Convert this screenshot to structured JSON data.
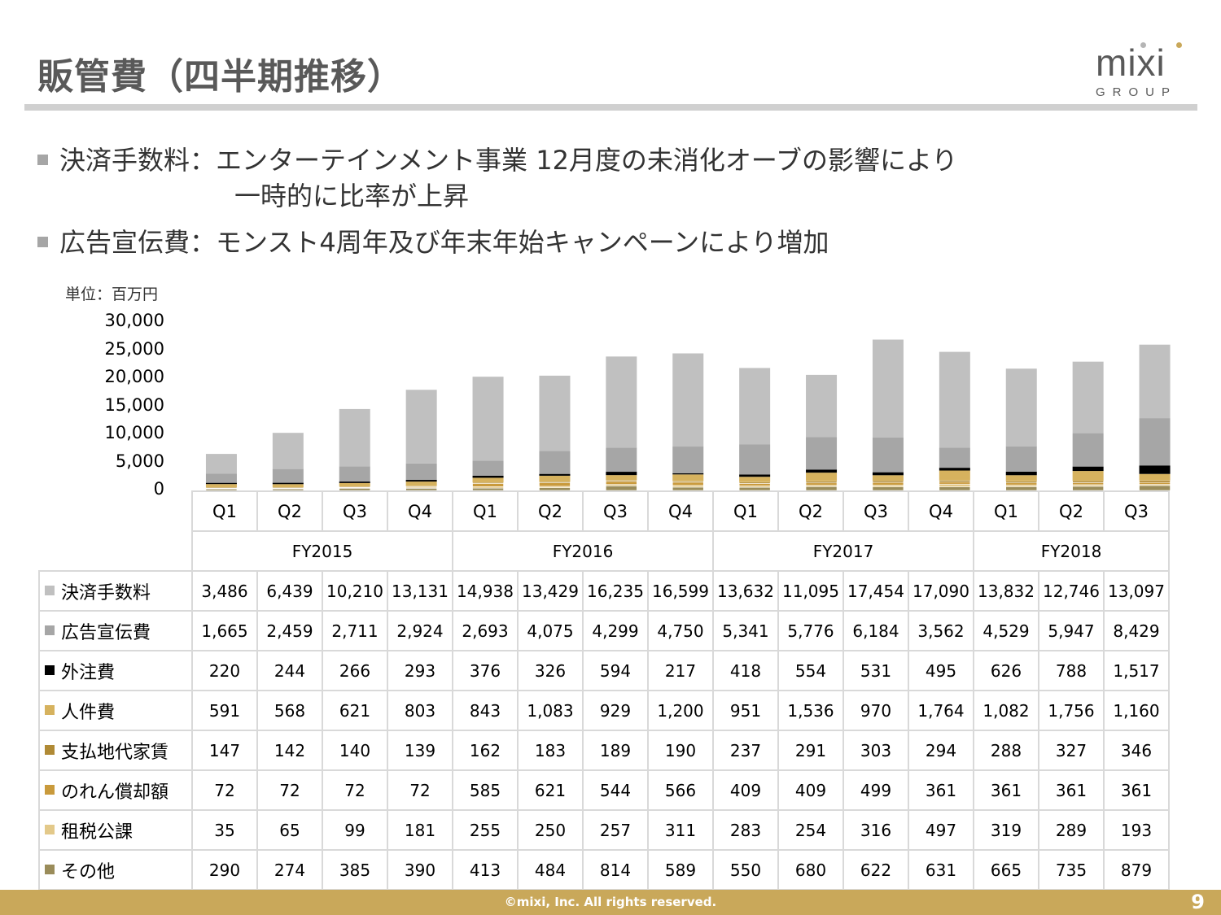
{
  "title": "販管費（四半期推移）",
  "logo": {
    "word": "mixi",
    "group": "GROUP"
  },
  "bullets": [
    {
      "line1": "決済手数料：エンターテインメント事業 12月度の未消化オーブの影響により",
      "line2": "一時的に比率が上昇"
    },
    {
      "line1": "広告宣伝費：モンスト4周年及び年末年始キャンペーンにより増加",
      "line2": ""
    }
  ],
  "unit_label": "単位：百万円",
  "chart_data": {
    "type": "bar",
    "stacked": true,
    "ylim": [
      0,
      30000
    ],
    "yticks": [
      "30,000",
      "25,000",
      "20,000",
      "15,000",
      "10,000",
      "5,000",
      "0"
    ],
    "categories": [
      "Q1",
      "Q2",
      "Q3",
      "Q4",
      "Q1",
      "Q2",
      "Q3",
      "Q4",
      "Q1",
      "Q2",
      "Q3",
      "Q4",
      "Q1",
      "Q2",
      "Q3"
    ],
    "groups": [
      {
        "label": "FY2015",
        "span": 4
      },
      {
        "label": "FY2016",
        "span": 4
      },
      {
        "label": "FY2017",
        "span": 4
      },
      {
        "label": "FY2018",
        "span": 3
      }
    ],
    "series": [
      {
        "name": "その他",
        "color": "#9a8c5a",
        "values": [
          290,
          274,
          385,
          390,
          413,
          484,
          814,
          589,
          550,
          680,
          622,
          631,
          665,
          735,
          879
        ],
        "labels": [
          "290",
          "274",
          "385",
          "390",
          "413",
          "484",
          "814",
          "589",
          "550",
          "680",
          "622",
          "631",
          "665",
          "735",
          "879"
        ]
      },
      {
        "name": "租税公課",
        "color": "#e3c98a",
        "values": [
          35,
          65,
          99,
          181,
          255,
          250,
          257,
          311,
          283,
          254,
          316,
          497,
          319,
          289,
          193
        ],
        "labels": [
          "35",
          "65",
          "99",
          "181",
          "255",
          "250",
          "257",
          "311",
          "283",
          "254",
          "316",
          "497",
          "319",
          "289",
          "193"
        ]
      },
      {
        "name": "のれん償却額",
        "color": "#c99a3c",
        "values": [
          72,
          72,
          72,
          72,
          585,
          621,
          544,
          566,
          409,
          409,
          499,
          361,
          361,
          361,
          361
        ],
        "labels": [
          "72",
          "72",
          "72",
          "72",
          "585",
          "621",
          "544",
          "566",
          "409",
          "409",
          "499",
          "361",
          "361",
          "361",
          "361"
        ]
      },
      {
        "name": "支払地代家賃",
        "color": "#b08a35",
        "values": [
          147,
          142,
          140,
          139,
          162,
          183,
          189,
          190,
          237,
          291,
          303,
          294,
          288,
          327,
          346
        ],
        "labels": [
          "147",
          "142",
          "140",
          "139",
          "162",
          "183",
          "189",
          "190",
          "237",
          "291",
          "303",
          "294",
          "288",
          "327",
          "346"
        ]
      },
      {
        "name": "人件費",
        "color": "#d6b25e",
        "values": [
          591,
          568,
          621,
          803,
          843,
          1083,
          929,
          1200,
          951,
          1536,
          970,
          1764,
          1082,
          1756,
          1160
        ],
        "labels": [
          "591",
          "568",
          "621",
          "803",
          "843",
          "1,083",
          "929",
          "1,200",
          "951",
          "1,536",
          "970",
          "1,764",
          "1,082",
          "1,756",
          "1,160"
        ]
      },
      {
        "name": "外注費",
        "color": "#000000",
        "values": [
          220,
          244,
          266,
          293,
          376,
          326,
          594,
          217,
          418,
          554,
          531,
          495,
          626,
          788,
          1517
        ],
        "labels": [
          "220",
          "244",
          "266",
          "293",
          "376",
          "326",
          "594",
          "217",
          "418",
          "554",
          "531",
          "495",
          "626",
          "788",
          "1,517"
        ]
      },
      {
        "name": "広告宣伝費",
        "color": "#a6a6a6",
        "values": [
          1665,
          2459,
          2711,
          2924,
          2693,
          4075,
          4299,
          4750,
          5341,
          5776,
          6184,
          3562,
          4529,
          5947,
          8429
        ],
        "labels": [
          "1,665",
          "2,459",
          "2,711",
          "2,924",
          "2,693",
          "4,075",
          "4,299",
          "4,750",
          "5,341",
          "5,776",
          "6,184",
          "3,562",
          "4,529",
          "5,947",
          "8,429"
        ]
      },
      {
        "name": "決済手数料",
        "color": "#c0c0c0",
        "values": [
          3486,
          6439,
          10210,
          13131,
          14938,
          13429,
          16235,
          16599,
          13632,
          11095,
          17454,
          17090,
          13832,
          12746,
          13097
        ],
        "labels": [
          "3,486",
          "6,439",
          "10,210",
          "13,131",
          "14,938",
          "13,429",
          "16,235",
          "16,599",
          "13,632",
          "11,095",
          "17,454",
          "17,090",
          "13,832",
          "12,746",
          "13,097"
        ]
      }
    ],
    "table_row_order": [
      "決済手数料",
      "広告宣伝費",
      "外注費",
      "人件費",
      "支払地代家賃",
      "のれん償却額",
      "租税公課",
      "その他"
    ]
  },
  "footer": {
    "copyright": "©mixi, Inc. All rights reserved.",
    "page": "9"
  }
}
